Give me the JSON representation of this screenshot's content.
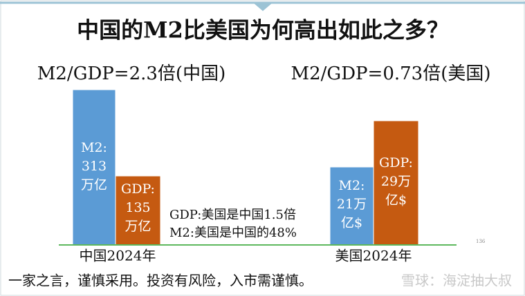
{
  "title": "中国的M2比美国为何高出如此之多？",
  "subtitles": [
    "M2/GDP=2.3倍(中国)",
    "M2/GDP=0.73倍(美国)"
  ],
  "bars": [
    {
      "lines": [
        "M2:",
        "313",
        "万亿"
      ]
    },
    {
      "lines": [
        "GDP:",
        "135",
        "万亿"
      ]
    },
    {
      "lines": [
        "M2:",
        "21万",
        "亿$"
      ]
    },
    {
      "lines": [
        "GDP:",
        "29万",
        "亿$"
      ]
    }
  ],
  "groups": [
    "中国2024年",
    "美国2024年"
  ],
  "notes": [
    "GDP:美国是中国1.5倍",
    "M2:美国是中国的48%"
  ],
  "page_number": "136",
  "footer": "一家之言，谨慎采用。投资有风险，入市需谨慎。",
  "watermark": "雪球：海淀抽大叔"
}
